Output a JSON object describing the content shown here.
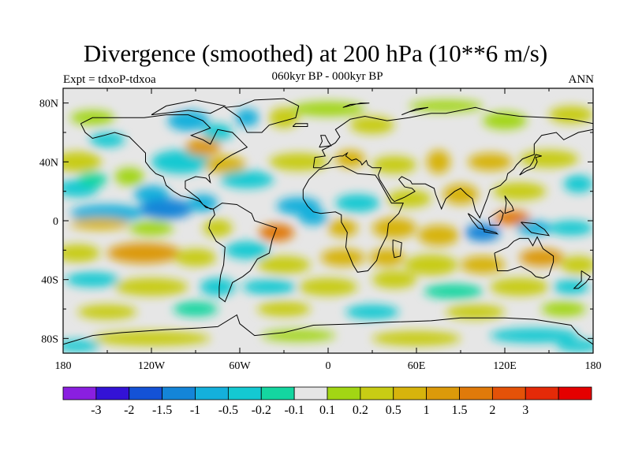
{
  "title": "Divergence (smoothed) at 200 hPa (10**6 m/s)",
  "left_label": "Expt = tdxoP-tdxoa",
  "center_label": "060kyr BP - 000kyr BP",
  "right_label": "ANN",
  "map": {
    "lon_range": [
      -180,
      180
    ],
    "lat_range": [
      -90,
      90
    ],
    "x_ticks": [
      {
        "value": -180,
        "label": "180"
      },
      {
        "value": -120,
        "label": "120W"
      },
      {
        "value": -60,
        "label": "60W"
      },
      {
        "value": 0,
        "label": "0"
      },
      {
        "value": 60,
        "label": "60E"
      },
      {
        "value": 120,
        "label": "120E"
      },
      {
        "value": 180,
        "label": "180"
      }
    ],
    "y_ticks": [
      {
        "value": 80,
        "label": "80N"
      },
      {
        "value": 40,
        "label": "40N"
      },
      {
        "value": 0,
        "label": "0"
      },
      {
        "value": -40,
        "label": "40S"
      },
      {
        "value": -80,
        "label": "80S"
      }
    ],
    "background_color": "#e6e6e6",
    "coastline_color": "#000000"
  },
  "colorbar": {
    "colors": [
      "#8a1fe0",
      "#3312d6",
      "#1452d6",
      "#1485d8",
      "#14b0dc",
      "#14c9d2",
      "#14d6a0",
      "#e6e6e6",
      "#a2d614",
      "#c8cc14",
      "#d7b40c",
      "#dc9a0a",
      "#e07a0a",
      "#e45208",
      "#e42a08",
      "#e40000"
    ],
    "labels": [
      "-3",
      "-2",
      "-1.5",
      "-1",
      "-0.5",
      "-0.2",
      "-0.1",
      "0.1",
      "0.2",
      "0.5",
      "1",
      "1.5",
      "2",
      "3"
    ]
  }
}
